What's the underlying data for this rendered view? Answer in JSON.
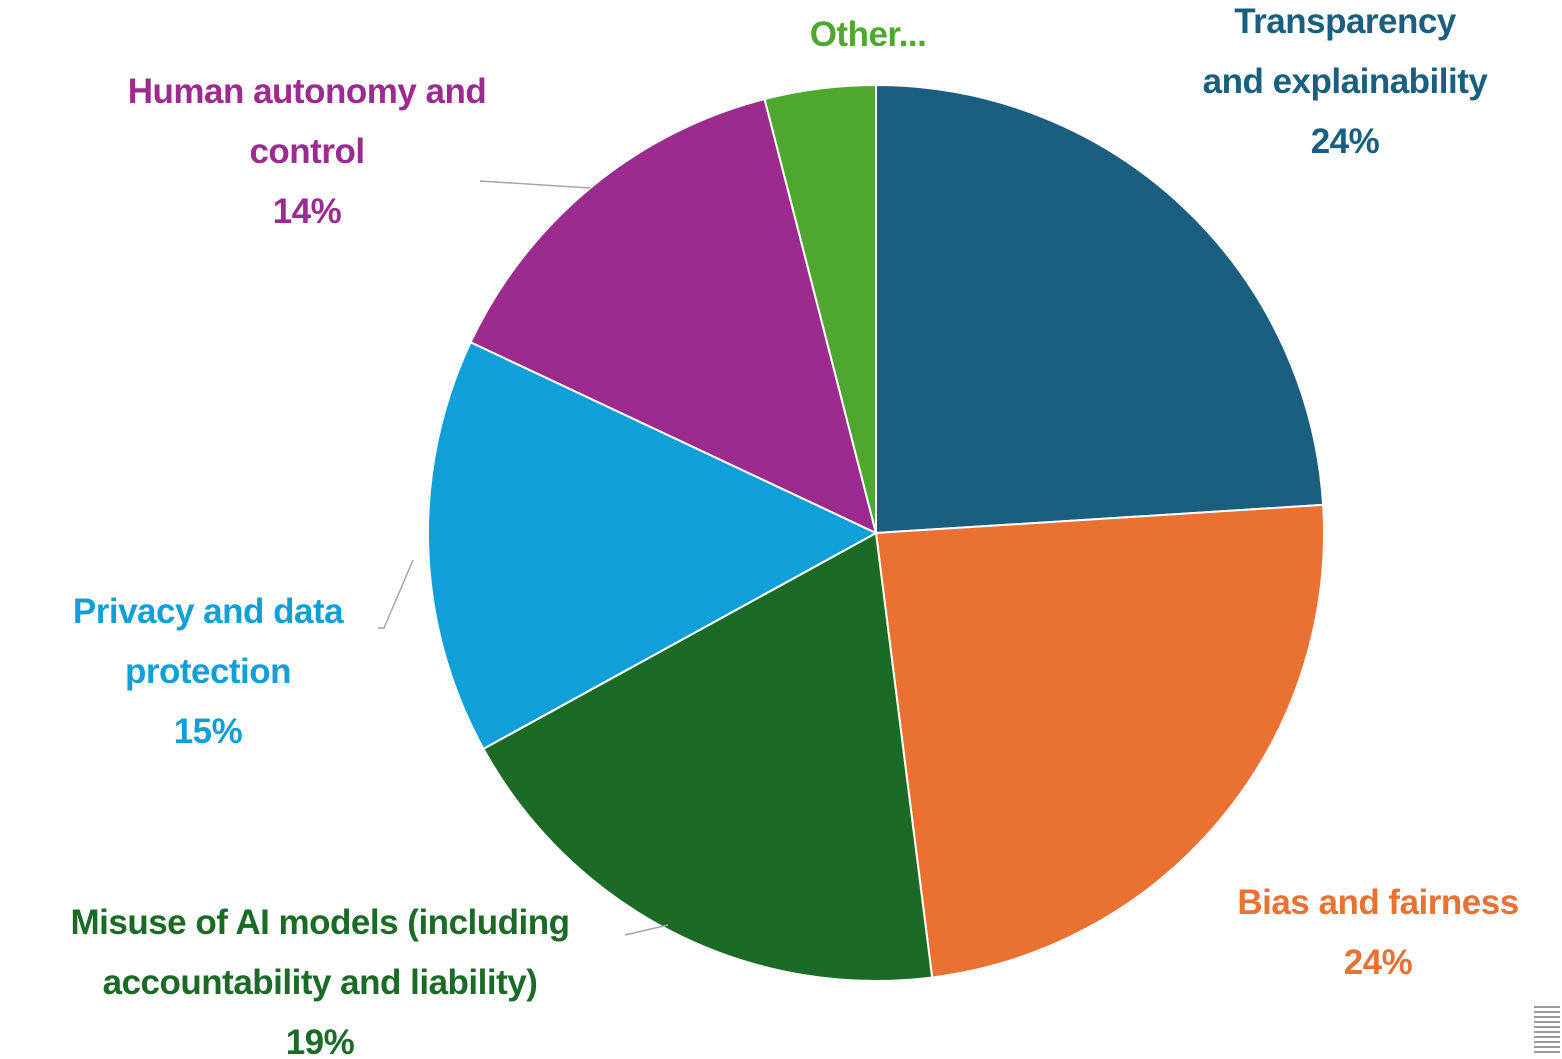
{
  "chart_data": {
    "type": "pie",
    "categories": [
      "Transparency and explainability",
      "Bias and fairness",
      "Misuse of AI models (including accountability and liability)",
      "Privacy and data protection",
      "Human autonomy and control",
      "Other..."
    ],
    "values": [
      24,
      24,
      19,
      15,
      14,
      4
    ],
    "value_labels": [
      "24%",
      "24%",
      "19%",
      "15%",
      "14%",
      null
    ],
    "colors": [
      "#1a5e80",
      "#e97132",
      "#1b6b26",
      "#109fd6",
      "#9c2b8f",
      "#4ea72e"
    ]
  }
}
